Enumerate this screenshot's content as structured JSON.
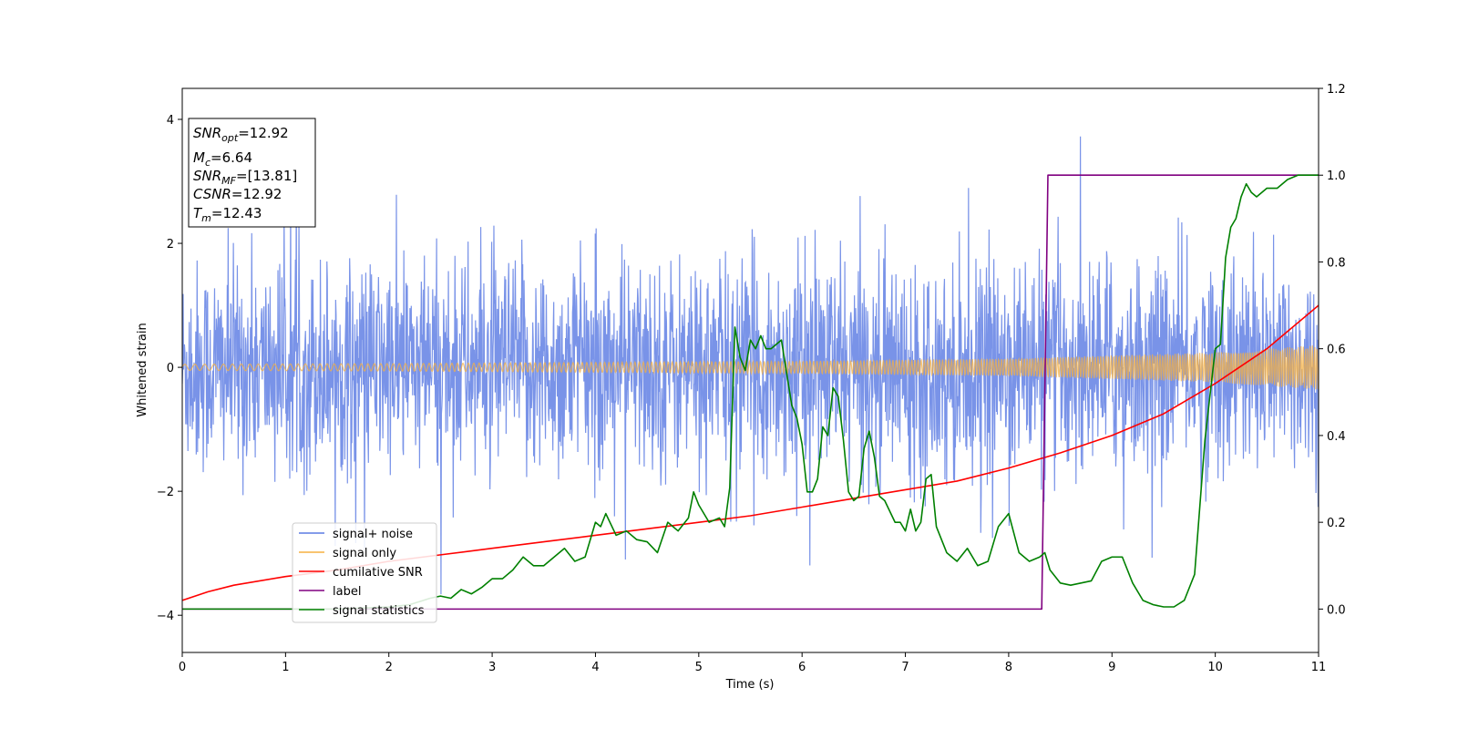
{
  "chart_data": {
    "type": "line",
    "xlabel": "Time (s)",
    "ylabel": "Whitened strain",
    "xlim": [
      0,
      11
    ],
    "ylim_left": [
      -4.6,
      4.5
    ],
    "ylim_right": [
      -0.1,
      1.2
    ],
    "x_ticks": [
      "0",
      "1",
      "2",
      "3",
      "4",
      "5",
      "6",
      "7",
      "8",
      "9",
      "10",
      "11"
    ],
    "y_ticks_left": [
      "-4",
      "-2",
      "0",
      "2",
      "4"
    ],
    "y_ticks_right": [
      "0.0",
      "0.2",
      "0.4",
      "0.6",
      "0.8",
      "1.0",
      "1.2"
    ],
    "legend_position": "lower-left",
    "stats_box": {
      "snr_opt": {
        "sym": "SNR",
        "sub": "opt",
        "val": "=12.92"
      },
      "mc": {
        "sym": "M",
        "sub": "c",
        "val": "=6.64"
      },
      "snr_mf": {
        "sym": "SNR",
        "sub": "MF",
        "val": "=[13.81]"
      },
      "csnr": {
        "sym": "CSNR",
        "sub": "",
        "val": "=12.92"
      },
      "tm": {
        "sym": "T",
        "sub": "m",
        "val": "=12.43"
      }
    },
    "series": [
      {
        "name": "signal+ noise",
        "axis": "left",
        "color": "#5b7be3",
        "noise": {
          "sigma": 0.85,
          "baseline": 0
        }
      },
      {
        "name": "signal only",
        "axis": "left",
        "color": "#f5b041",
        "envelope": {
          "x": [
            0,
            2,
            4,
            6,
            8,
            10,
            11
          ],
          "amplitude": [
            0.05,
            0.06,
            0.08,
            0.1,
            0.14,
            0.24,
            0.36
          ]
        }
      },
      {
        "name": "cumilative SNR",
        "axis": "right",
        "color": "#ff0000",
        "x": [
          0,
          0.25,
          0.5,
          1,
          1.5,
          2,
          2.5,
          3,
          3.5,
          4,
          4.5,
          5,
          5.5,
          6,
          6.5,
          7,
          7.5,
          8,
          8.5,
          9,
          9.5,
          10,
          10.5,
          11
        ],
        "y": [
          0.02,
          0.04,
          0.055,
          0.075,
          0.09,
          0.11,
          0.125,
          0.14,
          0.155,
          0.17,
          0.185,
          0.2,
          0.215,
          0.235,
          0.255,
          0.275,
          0.295,
          0.325,
          0.36,
          0.4,
          0.45,
          0.52,
          0.6,
          0.7
        ]
      },
      {
        "name": "label",
        "axis": "right",
        "color": "#800080",
        "x": [
          0,
          8.32,
          8.38,
          11
        ],
        "y": [
          0.0,
          0.0,
          1.0,
          1.0
        ]
      },
      {
        "name": "signal statistics",
        "axis": "right",
        "color": "#008000",
        "x": [
          0,
          0.5,
          1,
          1.5,
          2,
          2.2,
          2.4,
          2.5,
          2.6,
          2.7,
          2.8,
          2.9,
          3.0,
          3.1,
          3.2,
          3.3,
          3.4,
          3.5,
          3.6,
          3.7,
          3.8,
          3.9,
          4.0,
          4.05,
          4.1,
          4.2,
          4.3,
          4.4,
          4.5,
          4.6,
          4.7,
          4.8,
          4.9,
          4.95,
          5.0,
          5.1,
          5.2,
          5.25,
          5.3,
          5.35,
          5.4,
          5.45,
          5.5,
          5.55,
          5.6,
          5.65,
          5.7,
          5.8,
          5.9,
          5.95,
          6.0,
          6.05,
          6.1,
          6.15,
          6.2,
          6.25,
          6.3,
          6.35,
          6.4,
          6.45,
          6.5,
          6.55,
          6.6,
          6.65,
          6.7,
          6.75,
          6.8,
          6.9,
          6.95,
          7.0,
          7.05,
          7.1,
          7.15,
          7.2,
          7.25,
          7.3,
          7.4,
          7.5,
          7.6,
          7.7,
          7.8,
          7.9,
          8.0,
          8.1,
          8.2,
          8.3,
          8.35,
          8.4,
          8.5,
          8.6,
          8.7,
          8.8,
          8.9,
          9.0,
          9.1,
          9.2,
          9.3,
          9.4,
          9.5,
          9.6,
          9.7,
          9.8,
          9.9,
          10.0,
          10.05,
          10.1,
          10.15,
          10.2,
          10.25,
          10.3,
          10.35,
          10.4,
          10.5,
          10.6,
          10.7,
          10.8,
          10.9,
          11.0
        ],
        "y": [
          0.0,
          0.0,
          0.0,
          0.0,
          0.005,
          0.01,
          0.025,
          0.03,
          0.025,
          0.045,
          0.035,
          0.05,
          0.07,
          0.07,
          0.09,
          0.12,
          0.1,
          0.1,
          0.12,
          0.14,
          0.11,
          0.12,
          0.2,
          0.19,
          0.22,
          0.17,
          0.18,
          0.16,
          0.155,
          0.13,
          0.2,
          0.18,
          0.21,
          0.27,
          0.24,
          0.2,
          0.21,
          0.19,
          0.28,
          0.65,
          0.58,
          0.55,
          0.62,
          0.6,
          0.63,
          0.6,
          0.6,
          0.62,
          0.47,
          0.44,
          0.38,
          0.27,
          0.27,
          0.3,
          0.42,
          0.4,
          0.51,
          0.49,
          0.39,
          0.27,
          0.25,
          0.26,
          0.37,
          0.41,
          0.35,
          0.26,
          0.25,
          0.2,
          0.2,
          0.18,
          0.23,
          0.18,
          0.2,
          0.3,
          0.31,
          0.19,
          0.13,
          0.11,
          0.14,
          0.1,
          0.11,
          0.19,
          0.22,
          0.13,
          0.11,
          0.12,
          0.13,
          0.09,
          0.06,
          0.055,
          0.06,
          0.065,
          0.11,
          0.12,
          0.12,
          0.06,
          0.02,
          0.01,
          0.005,
          0.005,
          0.02,
          0.08,
          0.39,
          0.6,
          0.61,
          0.81,
          0.88,
          0.9,
          0.95,
          0.98,
          0.96,
          0.95,
          0.97,
          0.97,
          0.99,
          1.0,
          1.0,
          1.0
        ]
      }
    ]
  }
}
